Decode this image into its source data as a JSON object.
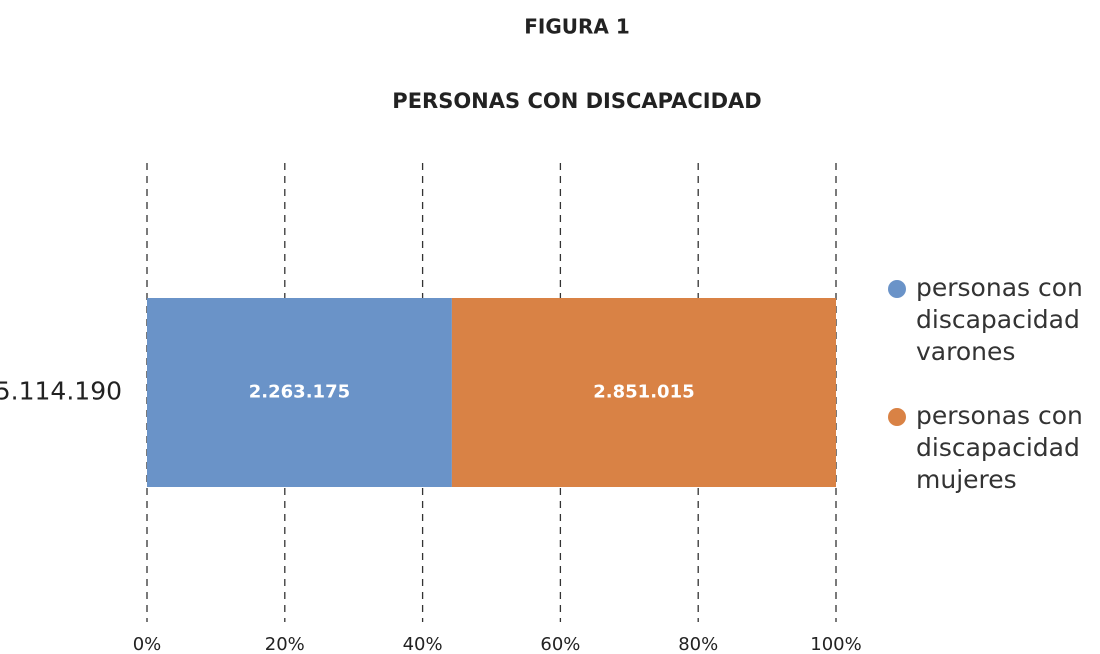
{
  "chart_data": {
    "type": "bar",
    "orientation": "horizontal",
    "stacking": "percent",
    "title": "FIGURA 1",
    "subtitle": "PERSONAS CON DISCAPACIDAD",
    "categories": [
      "5.114.190"
    ],
    "series": [
      {
        "name": "personas con discapacidad varones",
        "color": "#6a93c8",
        "values": [
          2263175
        ],
        "value_labels": [
          "2.263.175"
        ]
      },
      {
        "name": "personas con discapacidad mujeres",
        "color": "#d98245",
        "values": [
          2851015
        ],
        "value_labels": [
          "2.851.015"
        ]
      }
    ],
    "xlim": [
      0,
      100
    ],
    "xticks": [
      {
        "value": 0,
        "label": "0%"
      },
      {
        "value": 20,
        "label": "20%"
      },
      {
        "value": 40,
        "label": "40%"
      },
      {
        "value": 60,
        "label": "60%"
      },
      {
        "value": 80,
        "label": "80%"
      },
      {
        "value": 100,
        "label": "100%"
      }
    ],
    "grid": true,
    "legend": "right"
  }
}
